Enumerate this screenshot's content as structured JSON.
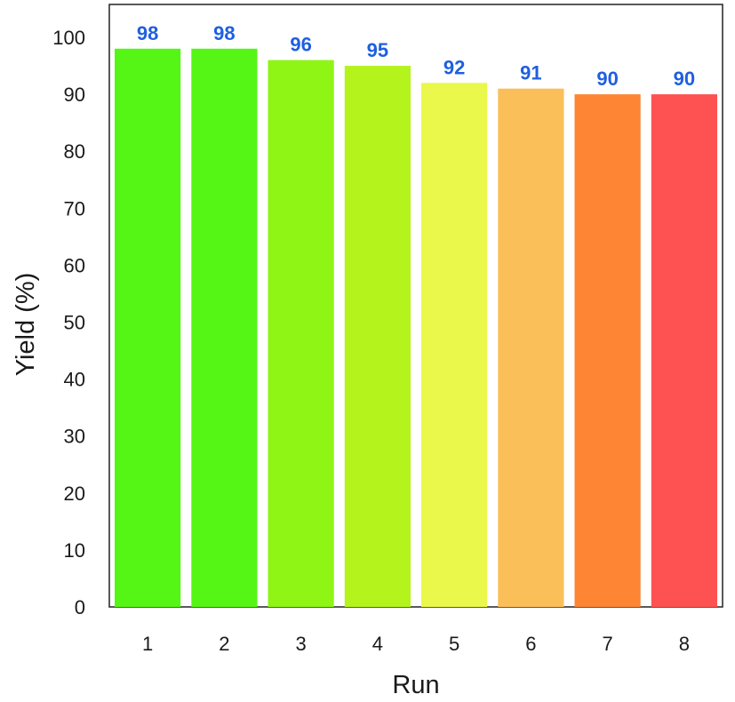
{
  "chart_data": {
    "type": "bar",
    "categories": [
      "1",
      "2",
      "3",
      "4",
      "5",
      "6",
      "7",
      "8"
    ],
    "values": [
      98,
      98,
      96,
      95,
      92,
      91,
      90,
      90
    ],
    "data_labels": [
      "98",
      "98",
      "96",
      "95",
      "92",
      "91",
      "90",
      "90"
    ],
    "bar_colors": [
      "#55f515",
      "#55f515",
      "#8ef515",
      "#b4f31c",
      "#e9f84a",
      "#fbbf5a",
      "#fd8533",
      "#fe5151"
    ],
    "label_color": "#1f5fe0",
    "xlabel": "Run",
    "ylabel": "Yield (%)",
    "ylim": [
      0,
      100
    ],
    "yticks": [
      0,
      10,
      20,
      30,
      40,
      50,
      60,
      70,
      80,
      90,
      100
    ],
    "grid": false,
    "legend": "none"
  }
}
